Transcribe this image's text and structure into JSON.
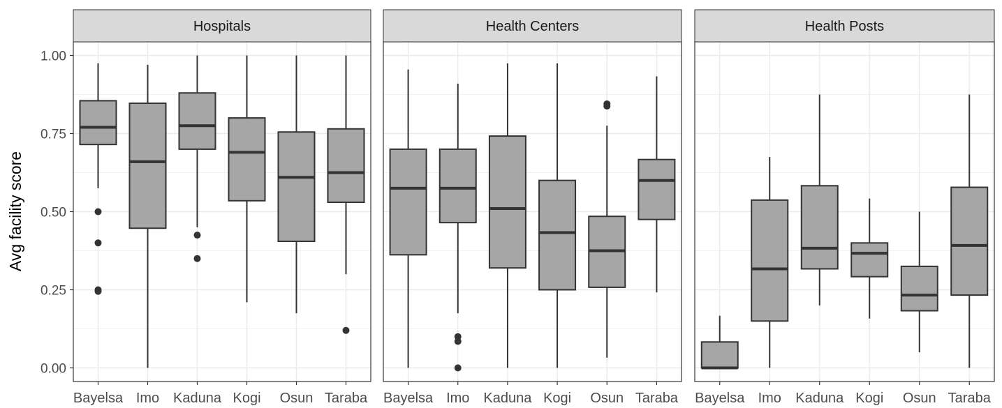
{
  "chart_data": {
    "type": "box",
    "ylabel": "Avg facility score",
    "xlabel": "",
    "ylim": [
      -0.045,
      1.12
    ],
    "yticks": [
      0.0,
      0.25,
      0.5,
      0.75,
      1.0
    ],
    "ytick_labels": [
      "0.00",
      "0.25",
      "0.50",
      "0.75",
      "1.00"
    ],
    "categories": [
      "Bayelsa",
      "Imo",
      "Kaduna",
      "Kogi",
      "Osun",
      "Taraba"
    ],
    "grid": true,
    "box_color": "#a6a6a6",
    "line_color": "#333333",
    "panels": [
      {
        "facet": "Hospitals",
        "boxes": [
          {
            "category": "Bayelsa",
            "whisker_low": 0.575,
            "q1": 0.715,
            "median": 0.77,
            "q3": 0.855,
            "whisker_high": 0.975,
            "outliers": [
              0.5,
              0.4,
              0.25,
              0.245
            ]
          },
          {
            "category": "Imo",
            "whisker_low": 0.0,
            "q1": 0.447,
            "median": 0.66,
            "q3": 0.847,
            "whisker_high": 0.97,
            "outliers": []
          },
          {
            "category": "Kaduna",
            "whisker_low": 0.45,
            "q1": 0.7,
            "median": 0.775,
            "q3": 0.88,
            "whisker_high": 1.0,
            "outliers": [
              0.425,
              0.35
            ]
          },
          {
            "category": "Kogi",
            "whisker_low": 0.21,
            "q1": 0.535,
            "median": 0.69,
            "q3": 0.8,
            "whisker_high": 1.0,
            "outliers": []
          },
          {
            "category": "Osun",
            "whisker_low": 0.175,
            "q1": 0.405,
            "median": 0.61,
            "q3": 0.755,
            "whisker_high": 1.0,
            "outliers": []
          },
          {
            "category": "Taraba",
            "whisker_low": 0.3,
            "q1": 0.53,
            "median": 0.625,
            "q3": 0.765,
            "whisker_high": 1.0,
            "outliers": [
              0.12
            ]
          }
        ]
      },
      {
        "facet": "Health Centers",
        "boxes": [
          {
            "category": "Bayelsa",
            "whisker_low": 0.0,
            "q1": 0.362,
            "median": 0.575,
            "q3": 0.7,
            "whisker_high": 0.955,
            "outliers": []
          },
          {
            "category": "Imo",
            "whisker_low": 0.175,
            "q1": 0.465,
            "median": 0.575,
            "q3": 0.7,
            "whisker_high": 0.91,
            "outliers": [
              0.1,
              0.085,
              0.0
            ]
          },
          {
            "category": "Kaduna",
            "whisker_low": 0.0,
            "q1": 0.32,
            "median": 0.51,
            "q3": 0.742,
            "whisker_high": 0.975,
            "outliers": []
          },
          {
            "category": "Kogi",
            "whisker_low": 0.0,
            "q1": 0.25,
            "median": 0.433,
            "q3": 0.6,
            "whisker_high": 0.975,
            "outliers": []
          },
          {
            "category": "Osun",
            "whisker_low": 0.033,
            "q1": 0.258,
            "median": 0.375,
            "q3": 0.485,
            "whisker_high": 0.775,
            "outliers": [
              0.845,
              0.838
            ]
          },
          {
            "category": "Taraba",
            "whisker_low": 0.242,
            "q1": 0.475,
            "median": 0.6,
            "q3": 0.667,
            "whisker_high": 0.933,
            "outliers": []
          }
        ]
      },
      {
        "facet": "Health Posts",
        "boxes": [
          {
            "category": "Bayelsa",
            "whisker_low": 0.0,
            "q1": 0.0,
            "median": 0.0,
            "q3": 0.083,
            "whisker_high": 0.167,
            "outliers": []
          },
          {
            "category": "Imo",
            "whisker_low": 0.0,
            "q1": 0.15,
            "median": 0.317,
            "q3": 0.537,
            "whisker_high": 0.675,
            "outliers": []
          },
          {
            "category": "Kaduna",
            "whisker_low": 0.2,
            "q1": 0.317,
            "median": 0.383,
            "q3": 0.583,
            "whisker_high": 0.875,
            "outliers": []
          },
          {
            "category": "Kogi",
            "whisker_low": 0.158,
            "q1": 0.292,
            "median": 0.367,
            "q3": 0.4,
            "whisker_high": 0.542,
            "outliers": []
          },
          {
            "category": "Osun",
            "whisker_low": 0.05,
            "q1": 0.183,
            "median": 0.233,
            "q3": 0.325,
            "whisker_high": 0.5,
            "outliers": []
          },
          {
            "category": "Taraba",
            "whisker_low": 0.0,
            "q1": 0.233,
            "median": 0.392,
            "q3": 0.578,
            "whisker_high": 0.875,
            "outliers": []
          }
        ]
      }
    ]
  }
}
